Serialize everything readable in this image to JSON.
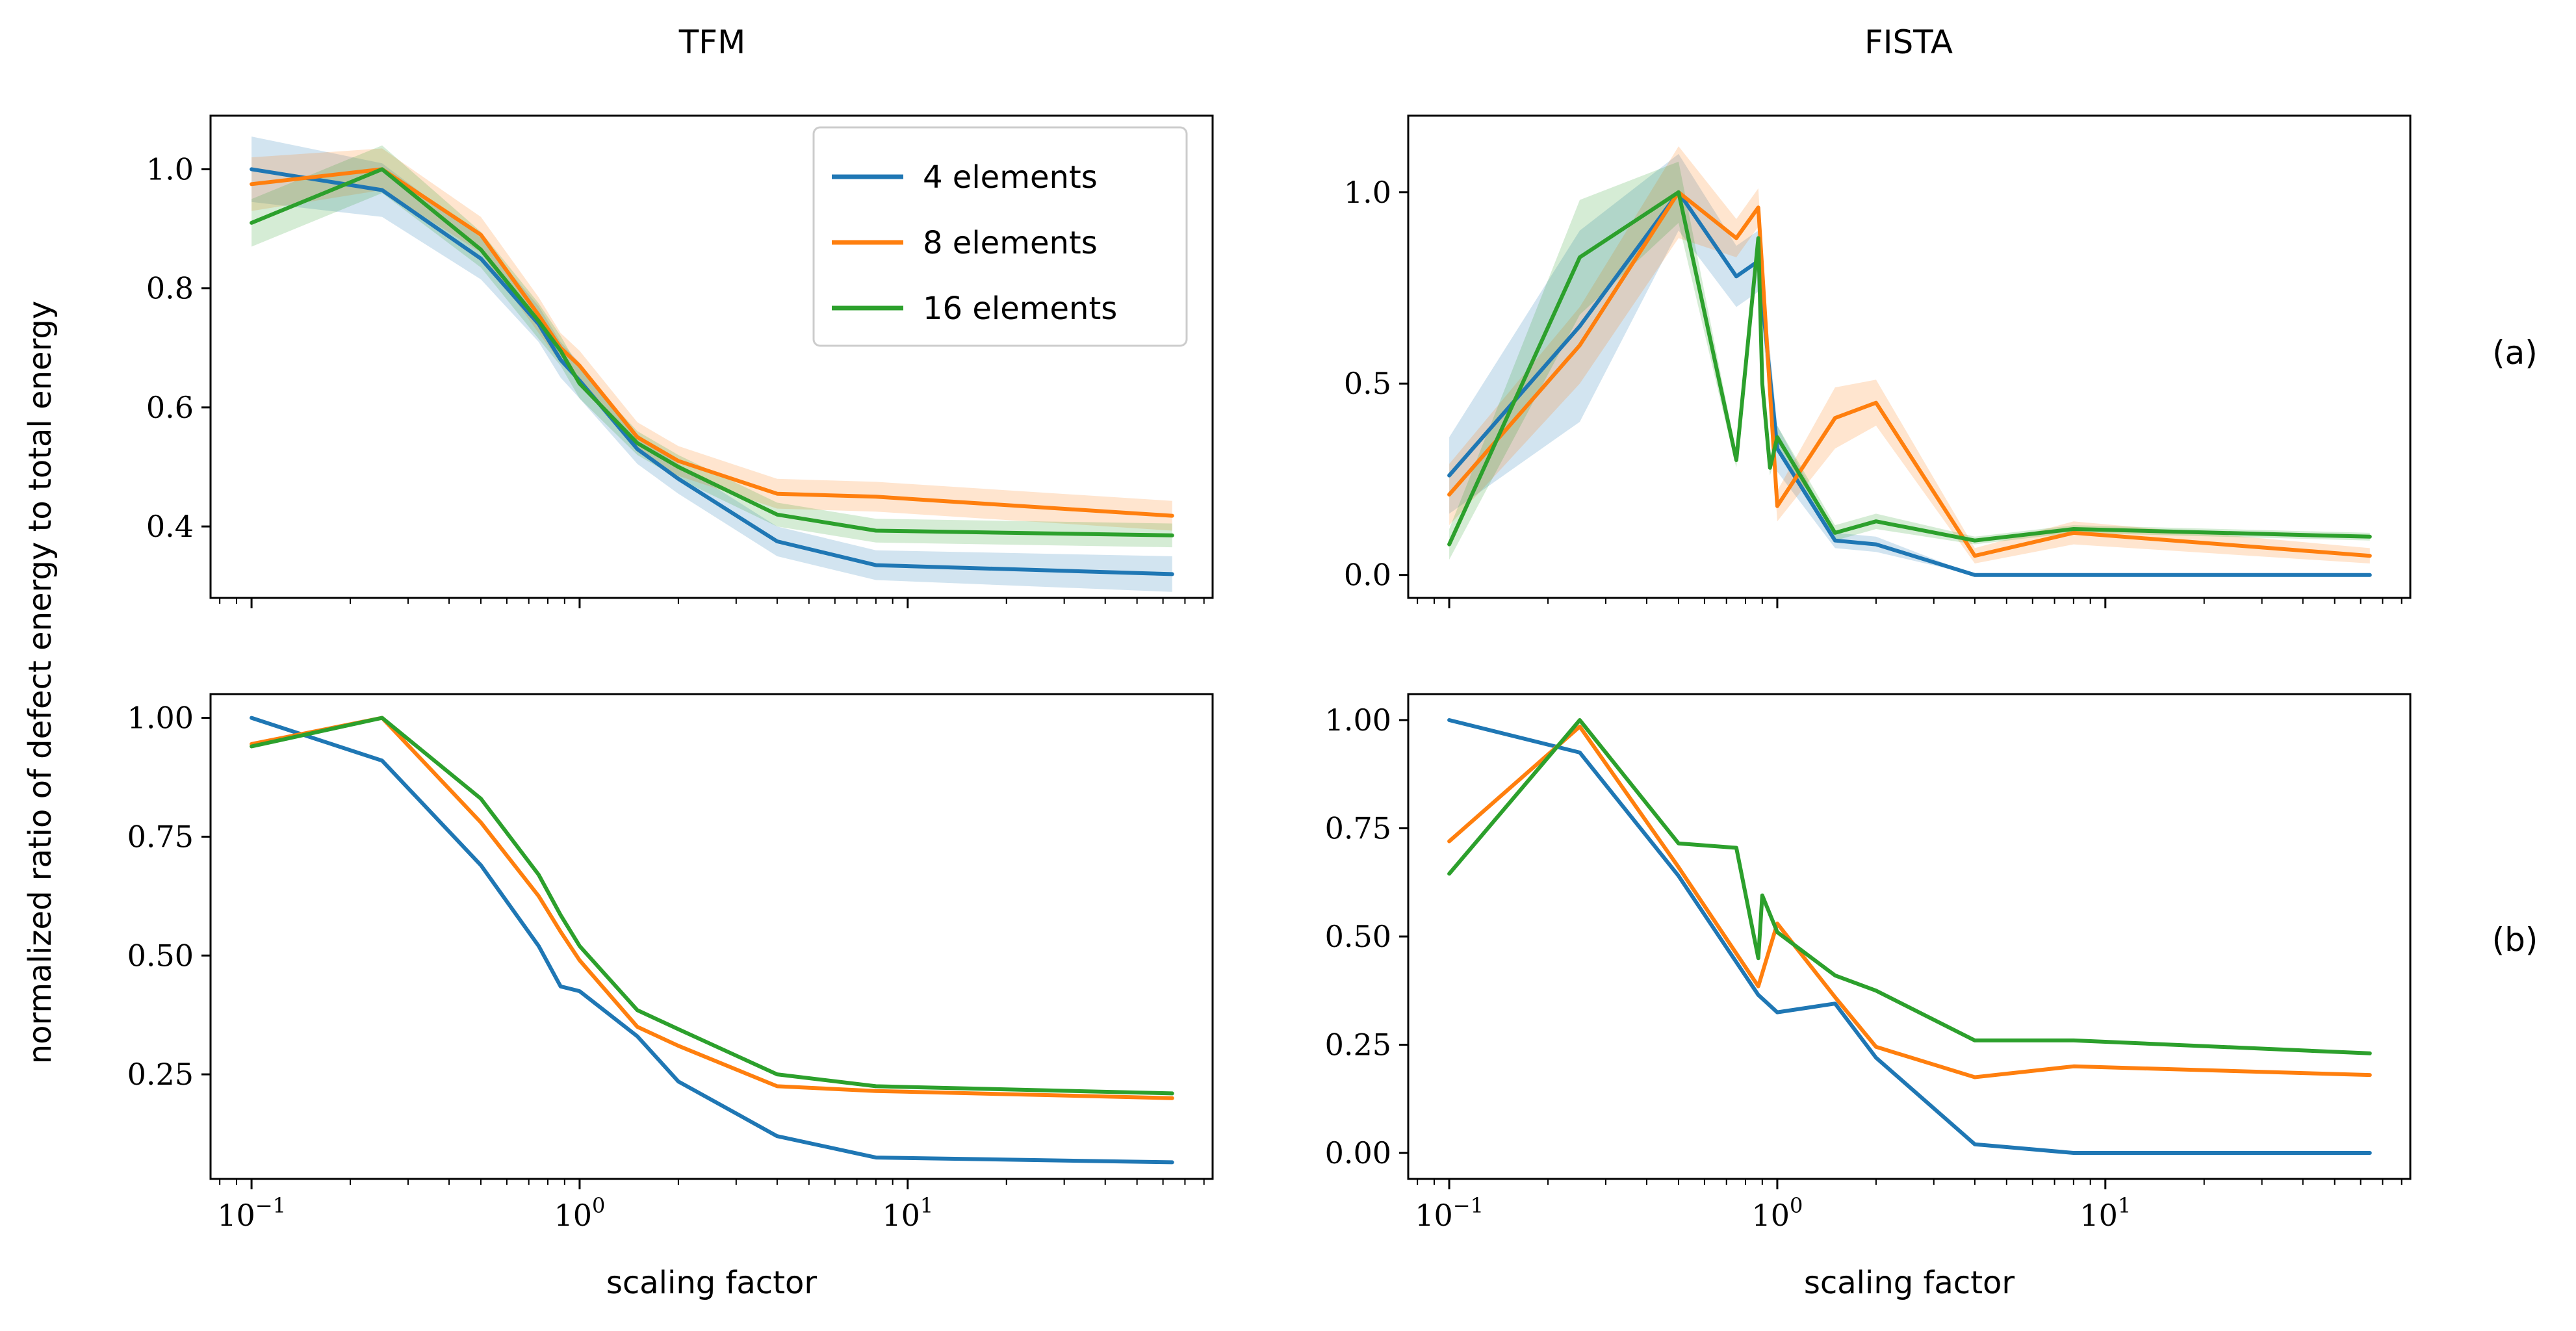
{
  "figure": {
    "ylabel": "normalized ratio of defect energy to total energy",
    "row_labels": [
      "(a)",
      "(b)"
    ],
    "colors": {
      "4 elements": "#1f77b4",
      "8 elements": "#ff7f0e",
      "16 elements": "#2ca02c"
    }
  },
  "chart_data": [
    {
      "id": "tfm_a",
      "type": "line",
      "title": "TFM",
      "xlabel": "",
      "xscale": "log",
      "xlim": [
        0.075,
        85
      ],
      "ylim": [
        0.28,
        1.09
      ],
      "yticks": [
        0.4,
        0.6,
        0.8,
        1.0
      ],
      "yticklabels": [
        "0.4",
        "0.6",
        "0.8",
        "1.0"
      ],
      "legend": {
        "position": "upper right",
        "entries": [
          "4 elements",
          "8 elements",
          "16 elements"
        ]
      },
      "series": [
        {
          "name": "4 elements",
          "x": [
            0.1,
            0.25,
            0.5,
            0.75,
            0.875,
            1.0,
            1.5,
            2.0,
            4.0,
            8.0,
            64.0
          ],
          "y": [
            1.0,
            0.965,
            0.85,
            0.74,
            0.68,
            0.645,
            0.53,
            0.48,
            0.375,
            0.335,
            0.32
          ],
          "band": [
            0.055,
            0.045,
            0.035,
            0.03,
            0.03,
            0.03,
            0.025,
            0.025,
            0.025,
            0.025,
            0.03
          ]
        },
        {
          "name": "8 elements",
          "x": [
            0.1,
            0.25,
            0.5,
            0.75,
            0.875,
            1.0,
            1.5,
            2.0,
            4.0,
            8.0,
            64.0
          ],
          "y": [
            0.975,
            1.0,
            0.89,
            0.755,
            0.7,
            0.67,
            0.55,
            0.51,
            0.455,
            0.45,
            0.418
          ],
          "band": [
            0.045,
            0.035,
            0.03,
            0.03,
            0.025,
            0.025,
            0.025,
            0.025,
            0.025,
            0.025,
            0.025
          ]
        },
        {
          "name": "16 elements",
          "x": [
            0.1,
            0.25,
            0.5,
            0.75,
            0.875,
            1.0,
            1.5,
            2.0,
            4.0,
            8.0,
            64.0
          ],
          "y": [
            0.91,
            1.0,
            0.865,
            0.745,
            0.695,
            0.64,
            0.54,
            0.5,
            0.42,
            0.393,
            0.385
          ],
          "band": [
            0.04,
            0.04,
            0.03,
            0.03,
            0.025,
            0.025,
            0.02,
            0.02,
            0.02,
            0.02,
            0.02
          ]
        }
      ]
    },
    {
      "id": "fista_a",
      "type": "line",
      "title": "FISTA",
      "xlabel": "",
      "xscale": "log",
      "xlim": [
        0.075,
        85
      ],
      "ylim": [
        -0.06,
        1.2
      ],
      "yticks": [
        0.0,
        0.5,
        1.0
      ],
      "yticklabels": [
        "0.0",
        "0.5",
        "1.0"
      ],
      "series": [
        {
          "name": "4 elements",
          "x": [
            0.1,
            0.25,
            0.5,
            0.75,
            0.875,
            1.0,
            1.5,
            2.0,
            4.0,
            8.0,
            64.0
          ],
          "y": [
            0.26,
            0.65,
            1.0,
            0.78,
            0.82,
            0.33,
            0.09,
            0.08,
            0.0,
            0.0,
            0.0
          ],
          "band": [
            0.1,
            0.25,
            0.1,
            0.08,
            0.08,
            0.06,
            0.02,
            0.02,
            0.0,
            0.0,
            0.0
          ]
        },
        {
          "name": "8 elements",
          "x": [
            0.1,
            0.25,
            0.5,
            0.75,
            0.875,
            1.0,
            1.5,
            2.0,
            4.0,
            8.0,
            64.0
          ],
          "y": [
            0.21,
            0.6,
            1.0,
            0.88,
            0.96,
            0.18,
            0.41,
            0.45,
            0.05,
            0.11,
            0.05
          ],
          "band": [
            0.08,
            0.1,
            0.12,
            0.05,
            0.05,
            0.04,
            0.08,
            0.06,
            0.02,
            0.03,
            0.02
          ]
        },
        {
          "name": "16 elements",
          "x": [
            0.1,
            0.25,
            0.5,
            0.75,
            0.875,
            0.9,
            0.95,
            1.0,
            1.5,
            2.0,
            4.0,
            8.0,
            64.0
          ],
          "y": [
            0.08,
            0.83,
            1.0,
            0.3,
            0.88,
            0.5,
            0.28,
            0.36,
            0.11,
            0.14,
            0.09,
            0.12,
            0.1
          ],
          "band": [
            0.04,
            0.15,
            0.08,
            0.02,
            0.03,
            0.02,
            0.02,
            0.03,
            0.02,
            0.02,
            0.01,
            0.01,
            0.01
          ]
        }
      ]
    },
    {
      "id": "tfm_b",
      "type": "line",
      "title": "",
      "xlabel": "scaling factor",
      "xscale": "log",
      "xlim": [
        0.075,
        85
      ],
      "ylim": [
        0.03,
        1.05
      ],
      "yticks": [
        0.25,
        0.5,
        0.75,
        1.0
      ],
      "yticklabels": [
        "0.25",
        "0.50",
        "0.75",
        "1.00"
      ],
      "xticks": [
        0.1,
        1,
        10
      ],
      "series": [
        {
          "name": "4 elements",
          "x": [
            0.1,
            0.25,
            0.5,
            0.75,
            0.875,
            1.0,
            1.5,
            2.0,
            4.0,
            8.0,
            64.0
          ],
          "y": [
            1.0,
            0.91,
            0.69,
            0.52,
            0.435,
            0.425,
            0.33,
            0.235,
            0.12,
            0.075,
            0.065
          ]
        },
        {
          "name": "8 elements",
          "x": [
            0.1,
            0.25,
            0.5,
            0.75,
            0.875,
            1.0,
            1.5,
            2.0,
            4.0,
            8.0,
            64.0
          ],
          "y": [
            0.945,
            1.0,
            0.78,
            0.625,
            0.55,
            0.49,
            0.35,
            0.31,
            0.225,
            0.215,
            0.2
          ]
        },
        {
          "name": "16 elements",
          "x": [
            0.1,
            0.25,
            0.5,
            0.75,
            0.875,
            1.0,
            1.5,
            2.0,
            4.0,
            8.0,
            64.0
          ],
          "y": [
            0.94,
            1.0,
            0.83,
            0.67,
            0.585,
            0.52,
            0.385,
            0.345,
            0.25,
            0.225,
            0.21
          ]
        }
      ]
    },
    {
      "id": "fista_b",
      "type": "line",
      "title": "",
      "xlabel": "scaling factor",
      "xscale": "log",
      "xlim": [
        0.075,
        85
      ],
      "ylim": [
        -0.06,
        1.06
      ],
      "yticks": [
        0.0,
        0.25,
        0.5,
        0.75,
        1.0
      ],
      "yticklabels": [
        "0.00",
        "0.25",
        "0.50",
        "0.75",
        "1.00"
      ],
      "xticks": [
        0.1,
        1,
        10
      ],
      "series": [
        {
          "name": "4 elements",
          "x": [
            0.1,
            0.25,
            0.5,
            0.875,
            1.0,
            1.5,
            2.0,
            4.0,
            8.0,
            64.0
          ],
          "y": [
            1.0,
            0.925,
            0.64,
            0.365,
            0.325,
            0.345,
            0.22,
            0.02,
            0.0,
            0.0
          ]
        },
        {
          "name": "8 elements",
          "x": [
            0.1,
            0.25,
            0.5,
            0.875,
            1.0,
            1.5,
            2.0,
            4.0,
            8.0,
            64.0
          ],
          "y": [
            0.72,
            0.985,
            0.66,
            0.385,
            0.53,
            0.36,
            0.245,
            0.175,
            0.2,
            0.18
          ]
        },
        {
          "name": "16 elements",
          "x": [
            0.1,
            0.25,
            0.5,
            0.75,
            0.875,
            0.9,
            1.0,
            1.5,
            2.0,
            4.0,
            8.0,
            64.0
          ],
          "y": [
            0.645,
            1.0,
            0.715,
            0.705,
            0.45,
            0.595,
            0.51,
            0.41,
            0.375,
            0.26,
            0.26,
            0.23
          ]
        }
      ]
    }
  ]
}
